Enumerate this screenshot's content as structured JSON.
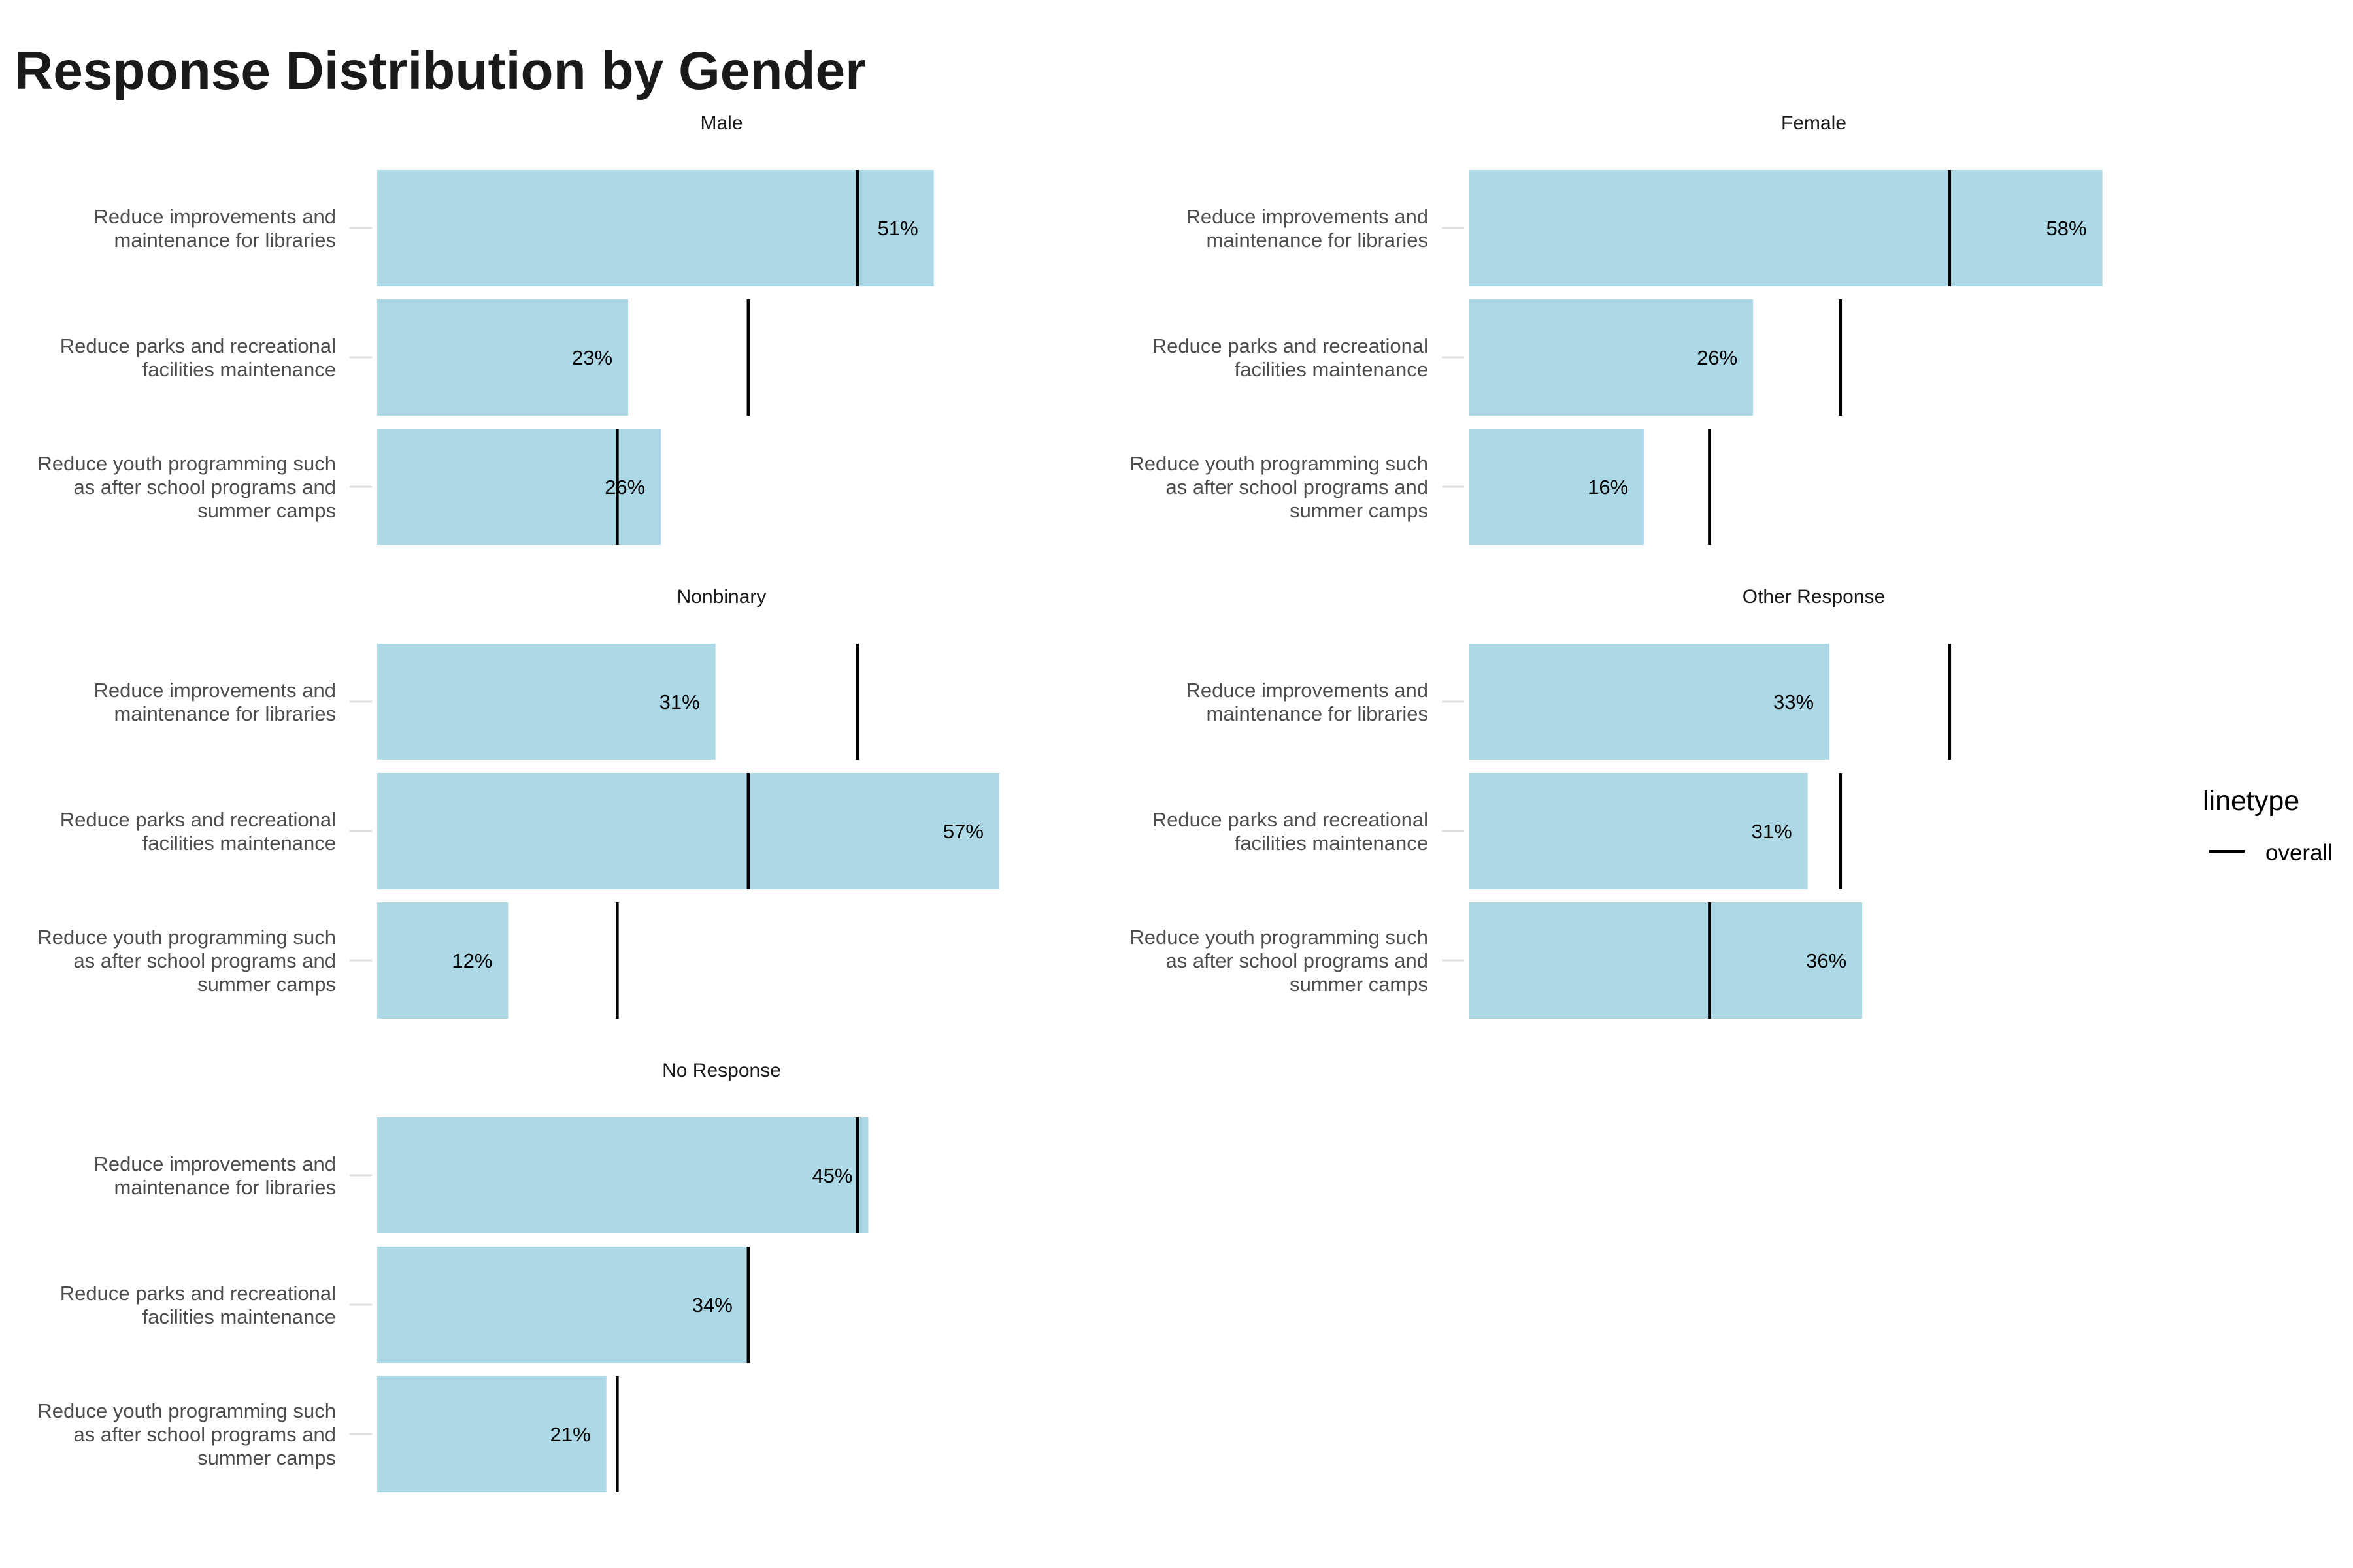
{
  "chart_data": {
    "type": "bar",
    "title": "Response Distribution by Gender",
    "orientation": "horizontal",
    "facet_layout": "2 columns",
    "categories": [
      "Reduce improvements and maintenance for libraries",
      "Reduce parks and recreational facilities maintenance",
      "Reduce youth programming such as after school programs and summer camps"
    ],
    "category_label_lines": [
      [
        "Reduce improvements and",
        "maintenance for libraries"
      ],
      [
        "Reduce parks and recreational",
        "facilities maintenance"
      ],
      [
        "Reduce youth programming such",
        "as after school programs and",
        "summer camps"
      ]
    ],
    "xlim": [
      0,
      0.57
    ],
    "bar_color": "#add8e6",
    "line_color": "#000000",
    "grid": false,
    "overall": {
      "name": "overall",
      "values": [
        0.44,
        0.34,
        0.22
      ]
    },
    "facets": [
      {
        "name": "Male",
        "values": [
          0.51,
          0.23,
          0.26
        ],
        "labels": [
          "51%",
          "23%",
          "26%"
        ]
      },
      {
        "name": "Female",
        "values": [
          0.58,
          0.26,
          0.16
        ],
        "labels": [
          "58%",
          "26%",
          "16%"
        ]
      },
      {
        "name": "Nonbinary",
        "values": [
          0.31,
          0.57,
          0.12
        ],
        "labels": [
          "31%",
          "57%",
          "12%"
        ]
      },
      {
        "name": "Other Response",
        "values": [
          0.33,
          0.31,
          0.36
        ],
        "labels": [
          "33%",
          "31%",
          "36%"
        ]
      },
      {
        "name": "No Response",
        "values": [
          0.45,
          0.34,
          0.21
        ],
        "labels": [
          "45%",
          "34%",
          "21%"
        ]
      }
    ],
    "legend": {
      "title": "linetype",
      "entries": [
        "overall"
      ],
      "position": "right"
    }
  }
}
